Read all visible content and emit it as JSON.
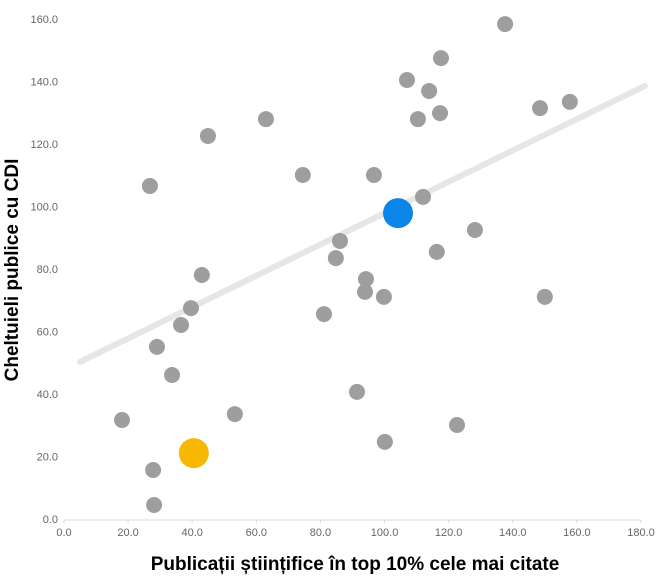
{
  "chart_data": {
    "type": "scatter",
    "x_label": "Publicații științifice în top 10% cele mai citate",
    "y_label": "Cheltuieli publice cu CDI",
    "xlim": [
      0,
      180
    ],
    "ylim": [
      0,
      160
    ],
    "xticks": [
      {
        "value": 0,
        "label": "0.0"
      },
      {
        "value": 20,
        "label": "20.0"
      },
      {
        "value": 40,
        "label": "40.0"
      },
      {
        "value": 60,
        "label": "60.0"
      },
      {
        "value": 80,
        "label": "80.0"
      },
      {
        "value": 100,
        "label": "100.0"
      },
      {
        "value": 120,
        "label": "120.0"
      },
      {
        "value": 140,
        "label": "140.0"
      },
      {
        "value": 160,
        "label": "160.0"
      },
      {
        "value": 180,
        "label": "180.0"
      }
    ],
    "yticks": [
      {
        "value": 0,
        "label": "0.0"
      },
      {
        "value": 20,
        "label": "20.0"
      },
      {
        "value": 40,
        "label": "40.0"
      },
      {
        "value": 60,
        "label": "60.0"
      },
      {
        "value": 80,
        "label": "80.0"
      },
      {
        "value": 100,
        "label": "100.0"
      },
      {
        "value": 120,
        "label": "120.0"
      },
      {
        "value": 140,
        "label": "140.0"
      },
      {
        "value": 160,
        "label": "160.0"
      }
    ],
    "series": [
      {
        "color": "#9e9e9e",
        "size": 8,
        "x": [
          137.6,
          117.6,
          107.0,
          113.9,
          157.8,
          148.5,
          117.3,
          110.4,
          63.0,
          44.9,
          26.8,
          74.5,
          96.7,
          112.0,
          128.2,
          86.1,
          84.8,
          116.3,
          43.0,
          94.2,
          93.9,
          99.8,
          150.0,
          39.6,
          81.1,
          36.5,
          29.0,
          33.7,
          91.4,
          53.3,
          18.1,
          122.6,
          100.1,
          27.8,
          28.1
        ],
        "y": [
          158.7,
          147.8,
          140.8,
          137.3,
          133.8,
          131.8,
          130.2,
          128.3,
          128.3,
          122.9,
          106.9,
          110.4,
          110.4,
          103.4,
          92.8,
          89.3,
          83.8,
          85.8,
          78.4,
          77.1,
          73.0,
          71.4,
          71.4,
          67.8,
          65.9,
          62.4,
          55.4,
          46.4,
          41.0,
          33.9,
          32.0,
          30.4,
          25.0,
          16.0,
          4.8
        ]
      },
      {
        "color": "#0b86e8",
        "size": 15,
        "x": [
          104.2
        ],
        "y": [
          98.2
        ]
      },
      {
        "color": "#f8b700",
        "size": 15,
        "x": [
          40.5
        ],
        "y": [
          21.4
        ]
      }
    ],
    "trendline": {
      "color": "#e6e6e6",
      "x": [
        5.0,
        181.2
      ],
      "y": [
        50.6,
        138.9
      ]
    }
  }
}
